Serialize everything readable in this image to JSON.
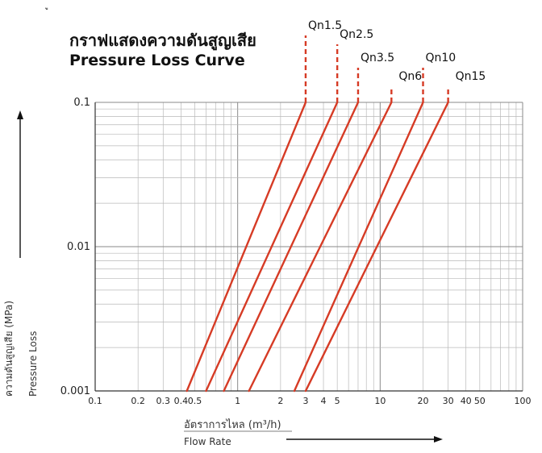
{
  "header": {
    "title_th": "กราฟแสดงความดันสูญเสีย",
    "title_en": "Pressure Loss Curve",
    "corner_mark": "ู"
  },
  "chart_data": {
    "type": "line",
    "title": "กราฟแสดงความดันสูญเสีย / Pressure Loss Curve",
    "xlabel_th": "อัตราการไหล (m³/h)",
    "xlabel_en": "Flow Rate",
    "ylabel_th": "ความดันสูญเสีย (MPa)",
    "ylabel_en": "Pressure Loss",
    "x_scale": "log",
    "y_scale": "log",
    "xlim": [
      0.1,
      100
    ],
    "ylim": [
      0.001,
      0.1
    ],
    "grid": true,
    "x_tick_labels": [
      "0.1",
      "0.2",
      "0.3",
      "0.4",
      "0.5",
      "1",
      "2",
      "3",
      "4",
      "5",
      "10",
      "20",
      "30",
      "40",
      "50",
      "100"
    ],
    "x_tick_values": [
      0.1,
      0.2,
      0.3,
      0.4,
      0.5,
      1,
      2,
      3,
      4,
      5,
      10,
      20,
      30,
      40,
      50,
      100
    ],
    "y_tick_labels": [
      "0.001",
      "0.01",
      "0.1"
    ],
    "y_tick_values": [
      0.001,
      0.01,
      0.1
    ],
    "line_color": "#d63b25",
    "series": [
      {
        "name": "Qn1.5",
        "x": [
          0.44,
          3.0
        ],
        "y": [
          0.001,
          0.1
        ]
      },
      {
        "name": "Qn2.5",
        "x": [
          0.6,
          5.0
        ],
        "y": [
          0.001,
          0.1
        ]
      },
      {
        "name": "Qn3.5",
        "x": [
          0.8,
          7.0
        ],
        "y": [
          0.001,
          0.1
        ]
      },
      {
        "name": "Qn6",
        "x": [
          1.2,
          12.0
        ],
        "y": [
          0.001,
          0.1
        ]
      },
      {
        "name": "Qn10",
        "x": [
          2.5,
          20.0
        ],
        "y": [
          0.001,
          0.1
        ]
      },
      {
        "name": "Qn15",
        "x": [
          3.0,
          30.0
        ],
        "y": [
          0.001,
          0.1
        ]
      }
    ]
  }
}
